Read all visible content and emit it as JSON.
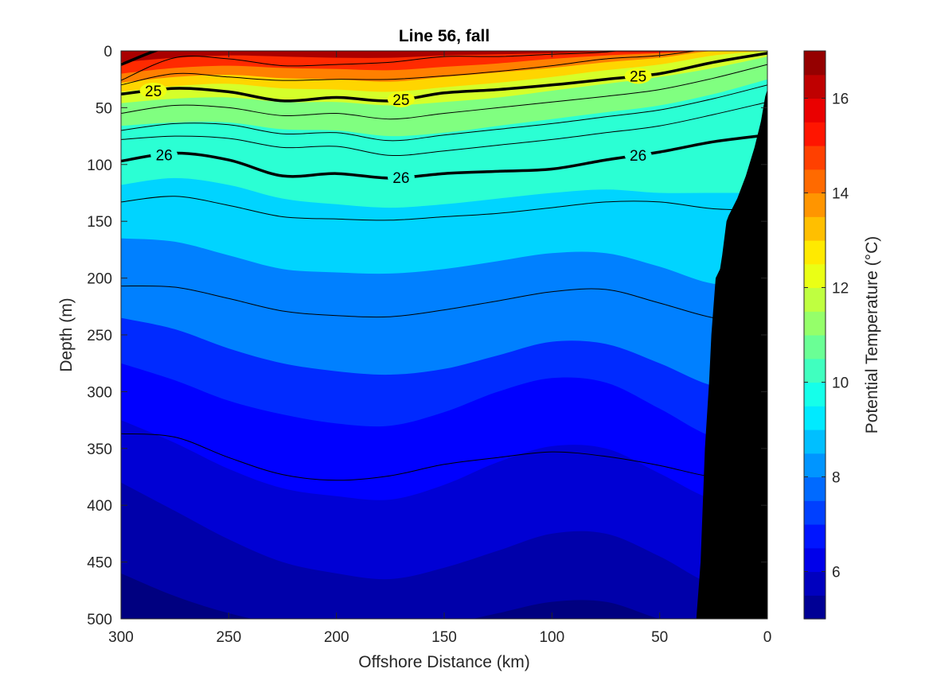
{
  "chart_data": {
    "type": "heatmap",
    "title": "Line 56, fall",
    "xlabel": "Offshore Distance (km)",
    "ylabel": "Depth (m)",
    "colorbar_label": "Potential Temperature (°C)",
    "xlim": [
      300,
      0
    ],
    "ylim": [
      500,
      0
    ],
    "x_reversed": true,
    "y_reversed": true,
    "x_ticks": [
      "300",
      "250",
      "200",
      "150",
      "100",
      "50",
      "0"
    ],
    "y_ticks": [
      "0",
      "50",
      "100",
      "150",
      "200",
      "250",
      "300",
      "350",
      "400",
      "450",
      "500"
    ],
    "colorbar_range": [
      5,
      17
    ],
    "colorbar_ticks": [
      "6",
      "8",
      "10",
      "12",
      "14",
      "16"
    ],
    "colormap": "jet",
    "contour_interval_c": 0.5,
    "x_stations_km": [
      300,
      275,
      250,
      225,
      200,
      175,
      150,
      125,
      100,
      75,
      50,
      25,
      0
    ],
    "isotherms": [
      {
        "temp": 15.5,
        "depth": [
          10,
          6,
          4,
          5,
          6,
          6,
          4,
          3,
          2,
          1,
          1,
          0,
          0
        ]
      },
      {
        "temp": 14.5,
        "depth": [
          20,
          15,
          13,
          15,
          16,
          17,
          14,
          11,
          7,
          4,
          2,
          0,
          0
        ]
      },
      {
        "temp": 13.5,
        "depth": [
          28,
          23,
          21,
          24,
          25,
          27,
          23,
          19,
          15,
          10,
          6,
          0,
          0
        ]
      },
      {
        "temp": 12.5,
        "depth": [
          36,
          31,
          29,
          33,
          34,
          36,
          32,
          28,
          23,
          17,
          12,
          4,
          0
        ]
      },
      {
        "temp": 11.5,
        "depth": [
          46,
          42,
          41,
          45,
          45,
          48,
          45,
          41,
          35,
          29,
          23,
          15,
          5
        ]
      },
      {
        "temp": 10.5,
        "depth": [
          66,
          63,
          63,
          69,
          70,
          75,
          72,
          66,
          60,
          54,
          48,
          38,
          25
        ]
      },
      {
        "temp": 9.5,
        "depth": [
          118,
          112,
          118,
          130,
          135,
          138,
          135,
          130,
          125,
          122,
          125,
          125,
          125
        ]
      },
      {
        "temp": 8.5,
        "depth": [
          165,
          168,
          180,
          192,
          195,
          196,
          192,
          185,
          178,
          178,
          190,
          205,
          205
        ]
      },
      {
        "temp": 7.5,
        "depth": [
          235,
          245,
          262,
          275,
          282,
          285,
          280,
          268,
          256,
          258,
          275,
          295,
          300
        ]
      },
      {
        "temp": 7.0,
        "depth": [
          275,
          290,
          308,
          320,
          328,
          330,
          318,
          300,
          288,
          292,
          315,
          340,
          345
        ]
      },
      {
        "temp": 6.5,
        "depth": [
          325,
          345,
          368,
          385,
          392,
          395,
          382,
          362,
          348,
          350,
          372,
          395,
          400
        ]
      },
      {
        "temp": 6.0,
        "depth": [
          380,
          405,
          430,
          450,
          460,
          465,
          455,
          440,
          425,
          425,
          445,
          470,
          475
        ]
      },
      {
        "temp": 5.5,
        "depth": [
          460,
          480,
          495,
          505,
          510,
          510,
          505,
          495,
          485,
          485,
          500,
          510,
          510
        ]
      }
    ],
    "density_contours": [
      {
        "sigma": 24.0,
        "label": "",
        "bold": true,
        "depth": [
          12,
          -5,
          -5,
          -5,
          -5,
          -5,
          -5,
          -5,
          -5,
          -5,
          -5,
          -5,
          -5
        ]
      },
      {
        "sigma": 24.5,
        "label": "",
        "bold": false,
        "depth": [
          26,
          6,
          7,
          13,
          12,
          10,
          5,
          5,
          3,
          1,
          -5,
          -5,
          -5
        ]
      },
      {
        "sigma": 24.75,
        "label": "",
        "bold": false,
        "depth": [
          30,
          20,
          23,
          26,
          25,
          25,
          22,
          18,
          13,
          7,
          4,
          -2,
          -5
        ]
      },
      {
        "sigma": 25.0,
        "label": "25",
        "bold": true,
        "depth": [
          38,
          33,
          36,
          44,
          41,
          44,
          37,
          34,
          30,
          25,
          20,
          10,
          2
        ]
      },
      {
        "sigma": 25.25,
        "label": "",
        "bold": false,
        "depth": [
          55,
          48,
          50,
          57,
          55,
          60,
          55,
          50,
          45,
          40,
          34,
          24,
          12
        ]
      },
      {
        "sigma": 25.5,
        "label": "",
        "bold": false,
        "depth": [
          70,
          64,
          65,
          73,
          72,
          79,
          74,
          69,
          64,
          58,
          52,
          42,
          30
        ]
      },
      {
        "sigma": 25.75,
        "label": "",
        "bold": false,
        "depth": [
          78,
          75,
          77,
          85,
          84,
          92,
          88,
          83,
          78,
          72,
          66,
          56,
          45
        ]
      },
      {
        "sigma": 26.0,
        "label": "26",
        "bold": true,
        "depth": [
          97,
          90,
          96,
          110,
          108,
          112,
          108,
          106,
          104,
          96,
          89,
          80,
          74
        ]
      },
      {
        "sigma": 26.5,
        "label": "",
        "bold": false,
        "depth": [
          133,
          128,
          136,
          146,
          148,
          149,
          146,
          143,
          138,
          133,
          133,
          139,
          140
        ]
      },
      {
        "sigma": 26.75,
        "label": "",
        "bold": false,
        "depth": [
          207,
          208,
          218,
          229,
          233,
          234,
          228,
          220,
          212,
          210,
          222,
          235,
          240
        ]
      },
      {
        "sigma": 27.0,
        "label": "",
        "bold": false,
        "depth": [
          337,
          340,
          358,
          373,
          378,
          374,
          364,
          358,
          353,
          357,
          365,
          375,
          375
        ]
      }
    ],
    "bathymetry": {
      "fill_color": "#000000",
      "x_km": [
        33,
        31,
        30,
        29,
        28,
        27,
        26,
        24,
        22,
        21,
        20,
        19,
        18,
        14,
        10,
        6,
        3,
        1,
        0
      ],
      "depth_m": [
        500,
        450,
        400,
        350,
        320,
        290,
        250,
        200,
        192,
        180,
        165,
        150,
        145,
        130,
        110,
        85,
        62,
        40,
        34
      ]
    }
  }
}
